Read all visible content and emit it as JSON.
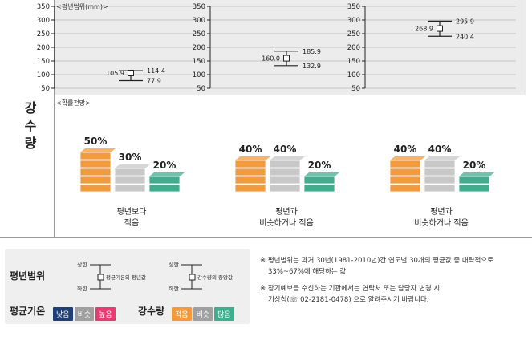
{
  "side_title": [
    "강",
    "수",
    "량"
  ],
  "range_title": "<평년범위(mm)>",
  "prob_title": "<확률전망>",
  "chart_data": {
    "type": "error-bar",
    "y_ticks": [
      350,
      300,
      250,
      200,
      150,
      100,
      50
    ],
    "ylim": [
      50,
      350
    ],
    "panels": [
      {
        "low": 77.9,
        "mid": 105.9,
        "high": 114.4,
        "low_label": "77.9",
        "mid_label": "105.9",
        "high_label": "114.4"
      },
      {
        "low": 132.9,
        "mid": 160.0,
        "high": 185.9,
        "low_label": "132.9",
        "mid_label": "160.0",
        "high_label": "185.9"
      },
      {
        "low": 240.4,
        "mid": 268.9,
        "high": 295.9,
        "low_label": "240.4",
        "mid_label": "268.9",
        "high_label": "295.9"
      }
    ],
    "probabilities": [
      {
        "label_lines": [
          "평년보다",
          "적음"
        ],
        "values": [
          50,
          30,
          20
        ],
        "value_labels": [
          "50%",
          "30%",
          "20%"
        ]
      },
      {
        "label_lines": [
          "평년과",
          "비슷하거나 적음"
        ],
        "values": [
          40,
          40,
          20
        ],
        "value_labels": [
          "40%",
          "40%",
          "20%"
        ]
      },
      {
        "label_lines": [
          "평년과",
          "비슷하거나 적음"
        ],
        "values": [
          40,
          40,
          20
        ],
        "value_labels": [
          "40%",
          "40%",
          "20%"
        ]
      }
    ],
    "colors": {
      "low": "#f39a3c",
      "mid": "#c8c8c8",
      "high": "#3fae8f"
    }
  },
  "legend": {
    "range_label": "평년범위",
    "upper": "상한",
    "lower": "하한",
    "temp_mean_label": "평균기온의 평년값",
    "precip_median_label": "강수량의 중앙값",
    "temp_label": "평균기온",
    "temp_chips": [
      "낮음",
      "비슷",
      "높음"
    ],
    "temp_chip_colors": [
      "#1f3f77",
      "#a0a0a0",
      "#e73b72"
    ],
    "precip_label": "강수량",
    "precip_chips": [
      "적음",
      "비슷",
      "많음"
    ],
    "precip_chip_colors": [
      "#f39a3c",
      "#a0a0a0",
      "#3fae8f"
    ]
  },
  "notes": {
    "note1_line1": "※ 평년범위는 과거 30년(1981-2010년)간 연도별 30개의 평균값 중 대략적으로",
    "note1_line2": "33%~67%에 해당하는 값",
    "note2_line1": "※ 장기예보를 수신하는 기관에서는 연락처 또는 담당자 변경 시",
    "note2_line2": "기상청(☏ 02-2181-0478) 으로 알려주시기 바랍니다."
  }
}
